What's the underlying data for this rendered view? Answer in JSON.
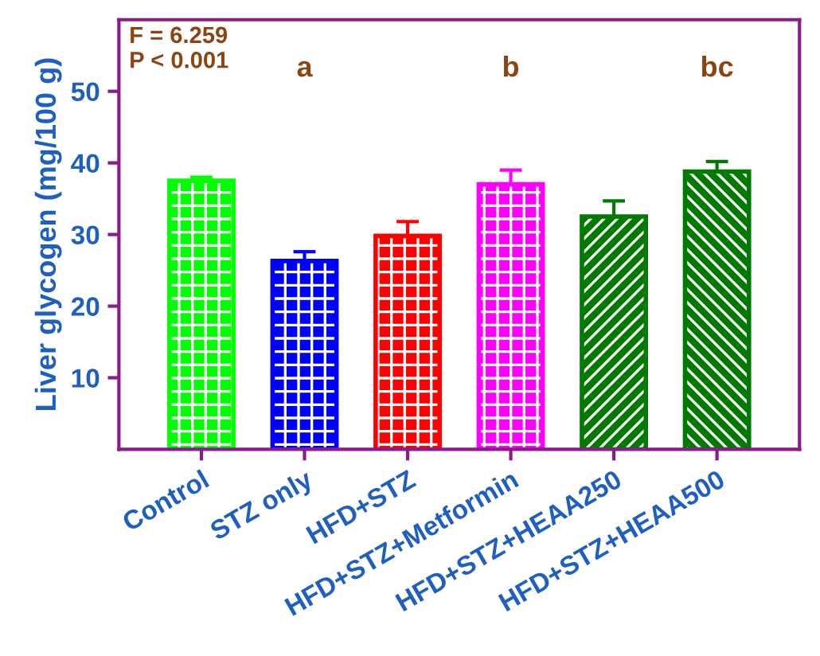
{
  "chart_data": {
    "type": "bar",
    "ylabel": "Liver glycogen (mg/100 g)",
    "categories": [
      "Control",
      "STZ only",
      "HFD+STZ",
      "HFD+STZ+Metformin",
      "HFD+STZ+HEAA250",
      "HFD+STZ+HEAA500"
    ],
    "values": [
      37.5,
      26.3,
      29.8,
      37.0,
      32.5,
      38.8
    ],
    "errors": [
      0.5,
      1.3,
      2.0,
      2.0,
      2.2,
      1.4
    ],
    "colors": [
      "#00ff00",
      "#0000ff",
      "#ff0000",
      "#ff00ff",
      "#007a00",
      "#007a00"
    ],
    "ylim": [
      0,
      60
    ],
    "yticks": [
      10,
      20,
      30,
      40,
      50
    ],
    "grid": false,
    "annotations": [
      "F = 6.259\nP < 0.001",
      "a",
      "b",
      "bc"
    ]
  }
}
